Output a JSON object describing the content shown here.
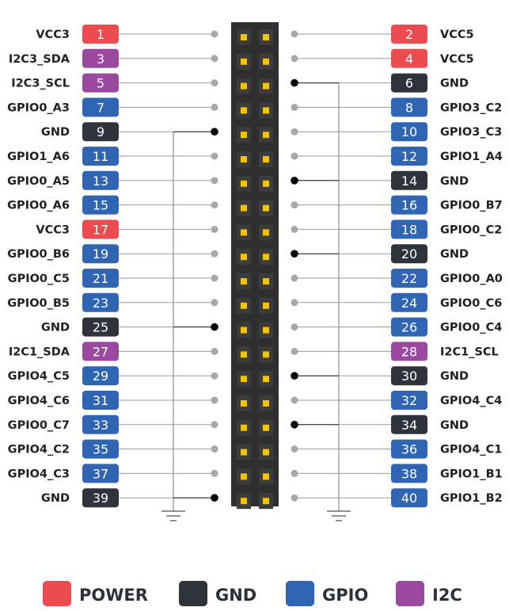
{
  "colors": {
    "power": "#ec4b4f",
    "gnd": "#2e343b",
    "gpio": "#2f65b3",
    "i2c": "#9b48a0",
    "header_body": "#2f2f2f",
    "pin_gold": "#f5c400",
    "wire": "#9a9a9a",
    "gnd_wire": "#222222"
  },
  "pins": [
    {
      "num": "1",
      "label": "VCC3",
      "type": "power"
    },
    {
      "num": "2",
      "label": "VCC5",
      "type": "power"
    },
    {
      "num": "3",
      "label": "I2C3_SDA",
      "type": "i2c"
    },
    {
      "num": "4",
      "label": "VCC5",
      "type": "power"
    },
    {
      "num": "5",
      "label": "I2C3_SCL",
      "type": "i2c"
    },
    {
      "num": "6",
      "label": "GND",
      "type": "gnd"
    },
    {
      "num": "7",
      "label": "GPIO0_A3",
      "type": "gpio"
    },
    {
      "num": "8",
      "label": "GPIO3_C2",
      "type": "gpio"
    },
    {
      "num": "9",
      "label": "GND",
      "type": "gnd"
    },
    {
      "num": "10",
      "label": "GPIO3_C3",
      "type": "gpio"
    },
    {
      "num": "11",
      "label": "GPIO1_A6",
      "type": "gpio"
    },
    {
      "num": "12",
      "label": "GPIO1_A4",
      "type": "gpio"
    },
    {
      "num": "13",
      "label": "GPIO0_A5",
      "type": "gpio"
    },
    {
      "num": "14",
      "label": "GND",
      "type": "gnd"
    },
    {
      "num": "15",
      "label": "GPIO0_A6",
      "type": "gpio"
    },
    {
      "num": "16",
      "label": "GPIO0_B7",
      "type": "gpio"
    },
    {
      "num": "17",
      "label": "VCC3",
      "type": "power"
    },
    {
      "num": "18",
      "label": "GPIO0_C2",
      "type": "gpio"
    },
    {
      "num": "19",
      "label": "GPIO0_B6",
      "type": "gpio"
    },
    {
      "num": "20",
      "label": "GND",
      "type": "gnd"
    },
    {
      "num": "21",
      "label": "GPIO0_C5",
      "type": "gpio"
    },
    {
      "num": "22",
      "label": "GPIO0_A0",
      "type": "gpio"
    },
    {
      "num": "23",
      "label": "GPIO0_B5",
      "type": "gpio"
    },
    {
      "num": "24",
      "label": "GPIO0_C6",
      "type": "gpio"
    },
    {
      "num": "25",
      "label": "GND",
      "type": "gnd"
    },
    {
      "num": "26",
      "label": "GPIO0_C4",
      "type": "gpio"
    },
    {
      "num": "27",
      "label": "I2C1_SDA",
      "type": "i2c"
    },
    {
      "num": "28",
      "label": "I2C1_SCL",
      "type": "i2c"
    },
    {
      "num": "29",
      "label": "GPIO4_C5",
      "type": "gpio"
    },
    {
      "num": "30",
      "label": "GND",
      "type": "gnd"
    },
    {
      "num": "31",
      "label": "GPIO4_C6",
      "type": "gpio"
    },
    {
      "num": "32",
      "label": "GPIO4_C4",
      "type": "gpio"
    },
    {
      "num": "33",
      "label": "GPIO0_C7",
      "type": "gpio"
    },
    {
      "num": "34",
      "label": "GND",
      "type": "gnd"
    },
    {
      "num": "35",
      "label": "GPIO4_C2",
      "type": "gpio"
    },
    {
      "num": "36",
      "label": "GPIO4_C1",
      "type": "gpio"
    },
    {
      "num": "37",
      "label": "GPIO4_C3",
      "type": "gpio"
    },
    {
      "num": "38",
      "label": "GPIO1_B1",
      "type": "gpio"
    },
    {
      "num": "39",
      "label": "GND",
      "type": "gnd"
    },
    {
      "num": "40",
      "label": "GPIO1_B2",
      "type": "gpio"
    }
  ],
  "legend": [
    {
      "label": "POWER",
      "type": "power"
    },
    {
      "label": "GND",
      "type": "gnd"
    },
    {
      "label": "GPIO",
      "type": "gpio"
    },
    {
      "label": "I2C",
      "type": "i2c"
    }
  ]
}
